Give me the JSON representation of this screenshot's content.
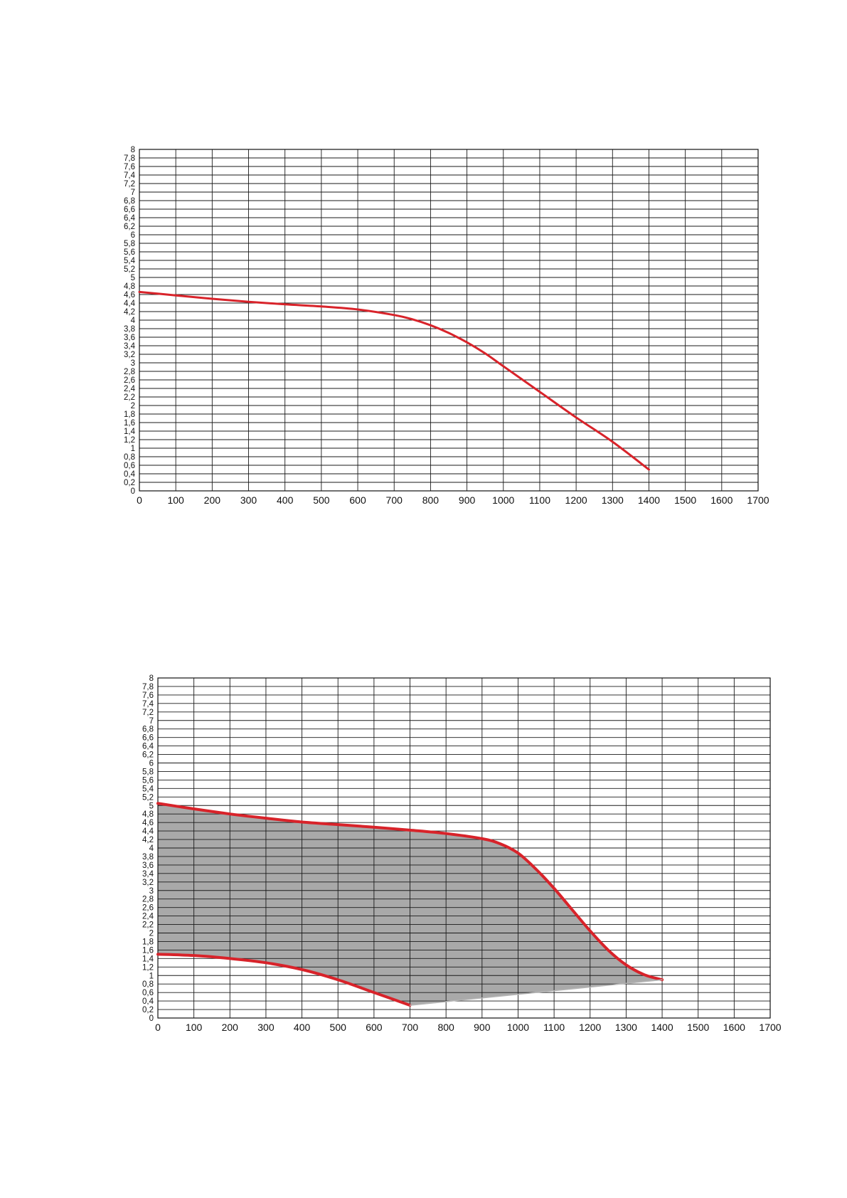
{
  "chart_data": [
    {
      "type": "line",
      "x_ticks": [
        "0",
        "100",
        "200",
        "300",
        "400",
        "500",
        "600",
        "700",
        "800",
        "900",
        "1000",
        "1100",
        "1200",
        "1300",
        "1400",
        "1500",
        "1600",
        "1700"
      ],
      "y_ticks": [
        "0",
        "0,2",
        "0,4",
        "0,6",
        "0,8",
        "1",
        "1,2",
        "1,4",
        "1,6",
        "1,8",
        "2",
        "2,2",
        "2,4",
        "2,6",
        "2,8",
        "3",
        "3,2",
        "3,4",
        "3,6",
        "3,8",
        "4",
        "4,2",
        "4,4",
        "4,6",
        "4,8",
        "5",
        "5,2",
        "5,4",
        "5,6",
        "5,8",
        "6",
        "6,2",
        "6,4",
        "6,6",
        "6,8",
        "7",
        "7,2",
        "7,4",
        "7,6",
        "7,8",
        "8"
      ],
      "xlim": [
        0,
        1700
      ],
      "ylim": [
        0,
        8
      ],
      "grid": true,
      "series": [
        {
          "color": "#d8232a",
          "x": [
            0,
            100,
            200,
            300,
            400,
            500,
            600,
            700,
            750,
            800,
            850,
            900,
            950,
            1000,
            1100,
            1200,
            1300,
            1400
          ],
          "y": [
            4.66,
            4.58,
            4.5,
            4.43,
            4.37,
            4.32,
            4.25,
            4.12,
            4.02,
            3.88,
            3.7,
            3.48,
            3.22,
            2.92,
            2.32,
            1.72,
            1.15,
            0.5
          ]
        }
      ]
    },
    {
      "type": "area",
      "x_ticks": [
        "0",
        "100",
        "200",
        "300",
        "400",
        "500",
        "600",
        "700",
        "800",
        "900",
        "1000",
        "1100",
        "1200",
        "1300",
        "1400",
        "1500",
        "1600",
        "1700"
      ],
      "y_ticks": [
        "0",
        "0,2",
        "0,4",
        "0,6",
        "0,8",
        "1",
        "1,2",
        "1,4",
        "1,6",
        "1,8",
        "2",
        "2,2",
        "2,4",
        "2,6",
        "2,8",
        "3",
        "3,2",
        "3,4",
        "3,6",
        "3,8",
        "4",
        "4,2",
        "4,4",
        "4,6",
        "4,8",
        "5",
        "5,2",
        "5,4",
        "5,6",
        "5,8",
        "6",
        "6,2",
        "6,4",
        "6,6",
        "6,8",
        "7",
        "7,2",
        "7,4",
        "7,6",
        "7,8",
        "8"
      ],
      "xlim": [
        0,
        1700
      ],
      "ylim": [
        0,
        8
      ],
      "grid": true,
      "fill_color": "#a9a9a9",
      "series": [
        {
          "color": "#d8232a",
          "x": [
            0,
            100,
            200,
            300,
            400,
            500,
            600,
            700,
            800,
            900,
            950,
            1000,
            1050,
            1100,
            1150,
            1200,
            1250,
            1300,
            1350,
            1400
          ],
          "y": [
            5.05,
            4.92,
            4.8,
            4.7,
            4.61,
            4.55,
            4.49,
            4.42,
            4.34,
            4.22,
            4.1,
            3.88,
            3.5,
            3.05,
            2.55,
            2.05,
            1.6,
            1.25,
            1.02,
            0.9
          ]
        },
        {
          "color": "#d8232a",
          "x": [
            0,
            100,
            200,
            300,
            400,
            500,
            600,
            700
          ],
          "y": [
            1.5,
            1.47,
            1.4,
            1.3,
            1.14,
            0.9,
            0.6,
            0.3
          ]
        },
        {
          "color": "#b5b5b5",
          "x": [
            700,
            1400
          ],
          "y": [
            0.3,
            0.9
          ]
        }
      ]
    }
  ]
}
